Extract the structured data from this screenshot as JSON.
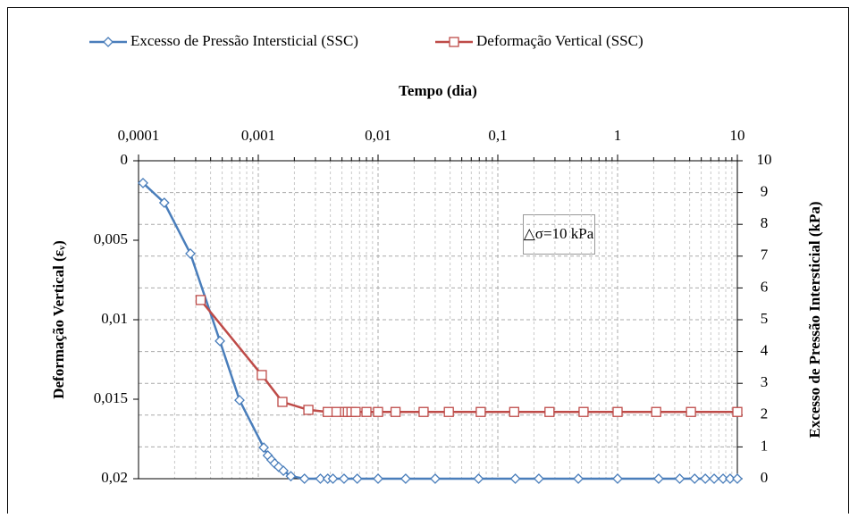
{
  "chart_data": {
    "type": "line",
    "title": "Tempo (dia)",
    "x_scale": "log",
    "grid": true,
    "y_reversed": true,
    "ylabel": "Deformação Vertical (εᵥ)",
    "y2label": "Excesso de Pressão Intersticial (kPa)",
    "annotation": "△σ=10 kPa",
    "xlim": [
      0.0001,
      10
    ],
    "xticks": [
      {
        "value": 0.0001,
        "label": "0,0001"
      },
      {
        "value": 0.001,
        "label": "0,001"
      },
      {
        "value": 0.01,
        "label": "0,01"
      },
      {
        "value": 0.1,
        "label": "0,1"
      },
      1,
      10
    ],
    "ylim": [
      0,
      0.02
    ],
    "yticks": [
      0,
      {
        "value": 0.005,
        "label": "0,005"
      },
      {
        "value": 0.01,
        "label": "0,01"
      },
      {
        "value": 0.015,
        "label": "0,015"
      },
      {
        "value": 0.02,
        "label": "0,02"
      }
    ],
    "y2lim": [
      0,
      10
    ],
    "y2ticks": [
      0,
      1,
      2,
      3,
      4,
      5,
      6,
      7,
      8,
      9,
      10
    ],
    "series": [
      {
        "name": "Excesso de Pressão Intersticial (SSC)",
        "color": "#4a7ebb",
        "marker": "diamond",
        "axis": "y2",
        "x": [
          0.000109,
          0.000164,
          0.000271,
          0.000478,
          0.000697,
          0.00111,
          0.0012,
          0.00129,
          0.00137,
          0.00148,
          0.00162,
          0.00187,
          0.00243,
          0.0033,
          0.0038,
          0.0042,
          0.0052,
          0.0067,
          0.01,
          0.017,
          0.03,
          0.069,
          0.14,
          0.22,
          0.47,
          1,
          2.2,
          3.3,
          4.4,
          5.4,
          6.4,
          7.6,
          8.7,
          10
        ],
        "values": [
          9.3,
          8.68,
          7.08,
          4.33,
          2.47,
          0.98,
          0.73,
          0.59,
          0.48,
          0.37,
          0.25,
          0.08,
          0,
          0,
          0,
          0,
          0,
          0,
          0,
          0,
          0,
          0,
          0,
          0,
          0,
          0,
          0,
          0,
          0,
          0,
          0,
          0,
          0,
          0
        ]
      },
      {
        "name": "Deformação Vertical (SSC)",
        "color": "#be4b48",
        "marker": "square",
        "x": [
          0.00033,
          0.00107,
          0.00159,
          0.00262,
          0.0038,
          0.0045,
          0.0053,
          0.0056,
          0.006,
          0.0065,
          0.008,
          0.01,
          0.014,
          0.024,
          0.039,
          0.072,
          0.137,
          0.27,
          0.52,
          1,
          2.1,
          4.1,
          10
        ],
        "values": [
          0.00876,
          0.01348,
          0.01517,
          0.01567,
          0.0158,
          0.0158,
          0.0158,
          0.0158,
          0.0158,
          0.0158,
          0.0158,
          0.0158,
          0.0158,
          0.0158,
          0.0158,
          0.0158,
          0.0158,
          0.0158,
          0.0158,
          0.0158,
          0.0158,
          0.0158,
          0.0158
        ]
      }
    ]
  }
}
